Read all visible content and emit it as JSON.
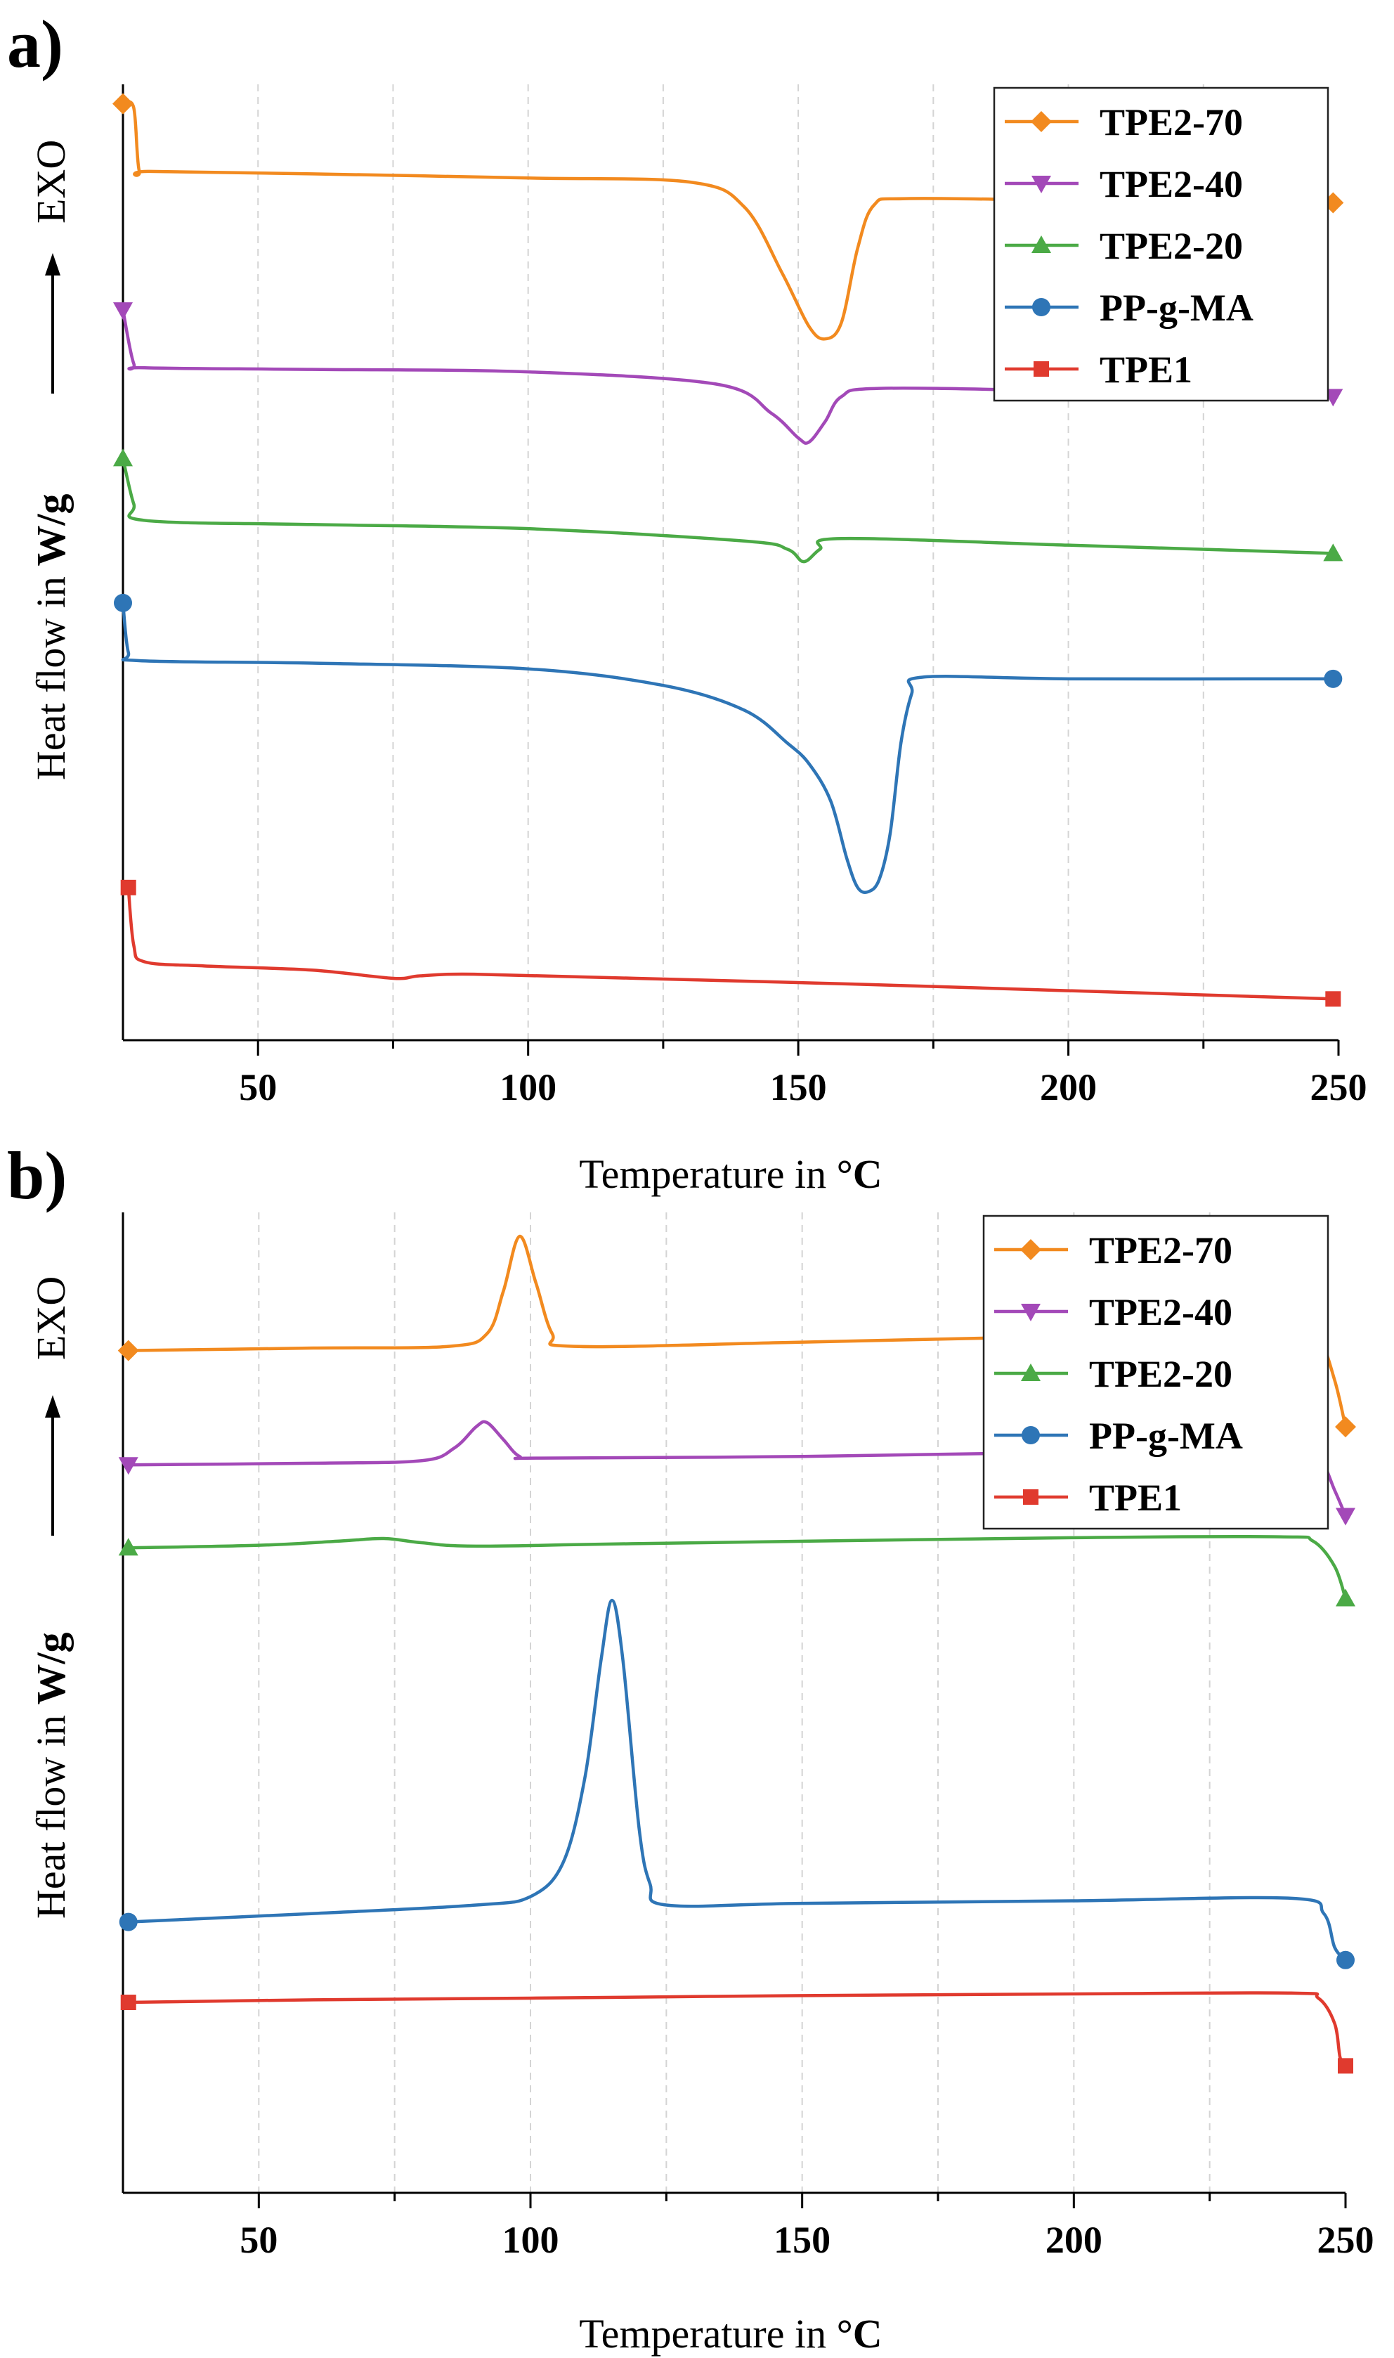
{
  "figure": {
    "panels": [
      {
        "letter": "a)",
        "xlabel_prefix": "Temperature in ",
        "xlabel_unit": "°C",
        "ylabel_prefix": "Heat flow in ",
        "ylabel_unit": "W/g",
        "ylabel_exo": "EXO"
      },
      {
        "letter": "b)",
        "xlabel_prefix": "Temperature in ",
        "xlabel_unit": "°C",
        "ylabel_prefix": "Heat flow in ",
        "ylabel_unit": "W/g",
        "ylabel_exo": "EXO"
      }
    ]
  },
  "chart_data": [
    {
      "type": "line",
      "panel": "a)",
      "xlabel": "Temperature in °C",
      "ylabel": "Heat flow in W/g",
      "y_direction_note": "EXO",
      "xlim": [
        25,
        250
      ],
      "xticks": [
        50,
        100,
        150,
        200,
        250
      ],
      "yticks_shown": false,
      "grid": "vertical dashed",
      "legend_position": "top-right",
      "series": [
        {
          "name": "TPE2-70",
          "color": "#F28A1F",
          "marker": "diamond",
          "points": [
            [
              25,
              0.15
            ],
            [
              27,
              0.2
            ],
            [
              28,
              0.96
            ],
            [
              30,
              0.97
            ],
            [
              60,
              1.0
            ],
            [
              100,
              1.05
            ],
            [
              130,
              1.1
            ],
            [
              140,
              1.4
            ],
            [
              147,
              2.2
            ],
            [
              152,
              2.85
            ],
            [
              155,
              3.0
            ],
            [
              158,
              2.8
            ],
            [
              161,
              1.9
            ],
            [
              164,
              1.38
            ],
            [
              170,
              1.3
            ],
            [
              200,
              1.32
            ],
            [
              249,
              1.35
            ]
          ]
        },
        {
          "name": "TPE2-40",
          "color": "#A349B8",
          "marker": "triangle-down",
          "points": [
            [
              25,
              2.65
            ],
            [
              27,
              3.3
            ],
            [
              29,
              3.35
            ],
            [
              60,
              3.37
            ],
            [
              100,
              3.4
            ],
            [
              135,
              3.55
            ],
            [
              145,
              3.9
            ],
            [
              150,
              4.2
            ],
            [
              152,
              4.25
            ],
            [
              155,
              4.0
            ],
            [
              158,
              3.7
            ],
            [
              165,
              3.6
            ],
            [
              200,
              3.63
            ],
            [
              249,
              3.7
            ]
          ]
        },
        {
          "name": "TPE2-20",
          "color": "#4BAA46",
          "marker": "triangle-up",
          "points": [
            [
              25,
              4.45
            ],
            [
              27,
              5.0
            ],
            [
              29,
              5.2
            ],
            [
              60,
              5.25
            ],
            [
              100,
              5.3
            ],
            [
              140,
              5.45
            ],
            [
              148,
              5.55
            ],
            [
              151,
              5.7
            ],
            [
              154,
              5.55
            ],
            [
              158,
              5.42
            ],
            [
              200,
              5.5
            ],
            [
              249,
              5.6
            ]
          ]
        },
        {
          "name": "PP-g-MA",
          "color": "#2E75B6",
          "marker": "circle",
          "points": [
            [
              25,
              6.2
            ],
            [
              26,
              6.8
            ],
            [
              28,
              6.9
            ],
            [
              60,
              6.93
            ],
            [
              100,
              7.0
            ],
            [
              125,
              7.2
            ],
            [
              140,
              7.5
            ],
            [
              148,
              7.9
            ],
            [
              152,
              8.15
            ],
            [
              156,
              8.6
            ],
            [
              159,
              9.3
            ],
            [
              161,
              9.65
            ],
            [
              163,
              9.7
            ],
            [
              165,
              9.55
            ],
            [
              167,
              9.0
            ],
            [
              169,
              7.9
            ],
            [
              171,
              7.3
            ],
            [
              173,
              7.1
            ],
            [
              200,
              7.12
            ],
            [
              249,
              7.12
            ]
          ]
        },
        {
          "name": "TPE1",
          "color": "#E03A2E",
          "marker": "square",
          "points": [
            [
              26,
              9.65
            ],
            [
              27,
              10.35
            ],
            [
              29,
              10.55
            ],
            [
              40,
              10.6
            ],
            [
              60,
              10.65
            ],
            [
              75,
              10.75
            ],
            [
              80,
              10.72
            ],
            [
              90,
              10.7
            ],
            [
              120,
              10.75
            ],
            [
              160,
              10.82
            ],
            [
              200,
              10.9
            ],
            [
              249,
              11.0
            ]
          ]
        }
      ]
    },
    {
      "type": "line",
      "panel": "b)",
      "xlabel": "Temperature in °C",
      "ylabel": "Heat flow in W/g",
      "y_direction_note": "EXO",
      "xlim": [
        25,
        250
      ],
      "xticks": [
        50,
        100,
        150,
        200,
        250
      ],
      "yticks_shown": false,
      "grid": "vertical dashed",
      "legend_position": "top-right",
      "series": [
        {
          "name": "TPE2-70",
          "color": "#F28A1F",
          "marker": "diamond",
          "points": [
            [
              26,
              1.55
            ],
            [
              60,
              1.52
            ],
            [
              85,
              1.5
            ],
            [
              92,
              1.35
            ],
            [
              95,
              0.85
            ],
            [
              98,
              0.2
            ],
            [
              101,
              0.75
            ],
            [
              104,
              1.35
            ],
            [
              108,
              1.5
            ],
            [
              150,
              1.45
            ],
            [
              200,
              1.38
            ],
            [
              240,
              1.35
            ],
            [
              245,
              1.4
            ],
            [
              248,
              1.9
            ],
            [
              250,
              2.45
            ]
          ]
        },
        {
          "name": "TPE2-40",
          "color": "#A349B8",
          "marker": "triangle-down",
          "points": [
            [
              26,
              2.9
            ],
            [
              60,
              2.88
            ],
            [
              80,
              2.85
            ],
            [
              86,
              2.7
            ],
            [
              90,
              2.45
            ],
            [
              92,
              2.4
            ],
            [
              95,
              2.6
            ],
            [
              98,
              2.8
            ],
            [
              102,
              2.82
            ],
            [
              150,
              2.8
            ],
            [
              200,
              2.75
            ],
            [
              240,
              2.74
            ],
            [
              245,
              2.8
            ],
            [
              248,
              3.2
            ],
            [
              250,
              3.5
            ]
          ]
        },
        {
          "name": "TPE2-20",
          "color": "#4BAA46",
          "marker": "triangle-up",
          "points": [
            [
              26,
              3.88
            ],
            [
              50,
              3.85
            ],
            [
              65,
              3.8
            ],
            [
              73,
              3.77
            ],
            [
              80,
              3.82
            ],
            [
              90,
              3.86
            ],
            [
              120,
              3.83
            ],
            [
              200,
              3.76
            ],
            [
              238,
              3.75
            ],
            [
              244,
              3.8
            ],
            [
              248,
              4.1
            ],
            [
              250,
              4.48
            ]
          ]
        },
        {
          "name": "PP-g-MA",
          "color": "#2E75B6",
          "marker": "circle",
          "points": [
            [
              26,
              8.3
            ],
            [
              60,
              8.2
            ],
            [
              90,
              8.1
            ],
            [
              100,
              8.0
            ],
            [
              106,
              7.6
            ],
            [
              110,
              6.6
            ],
            [
              113,
              5.2
            ],
            [
              115,
              4.5
            ],
            [
              117,
              5.2
            ],
            [
              120,
              7.2
            ],
            [
              122,
              7.85
            ],
            [
              125,
              8.1
            ],
            [
              150,
              8.08
            ],
            [
              200,
              8.05
            ],
            [
              240,
              8.02
            ],
            [
              246,
              8.2
            ],
            [
              248,
              8.6
            ],
            [
              250,
              8.75
            ]
          ]
        },
        {
          "name": "TPE1",
          "color": "#E03A2E",
          "marker": "square",
          "points": [
            [
              26,
              9.25
            ],
            [
              60,
              9.22
            ],
            [
              100,
              9.2
            ],
            [
              150,
              9.17
            ],
            [
              200,
              9.15
            ],
            [
              240,
              9.14
            ],
            [
              245,
              9.2
            ],
            [
              248,
              9.5
            ],
            [
              249,
              9.9
            ],
            [
              250,
              10.0
            ]
          ]
        }
      ]
    }
  ]
}
